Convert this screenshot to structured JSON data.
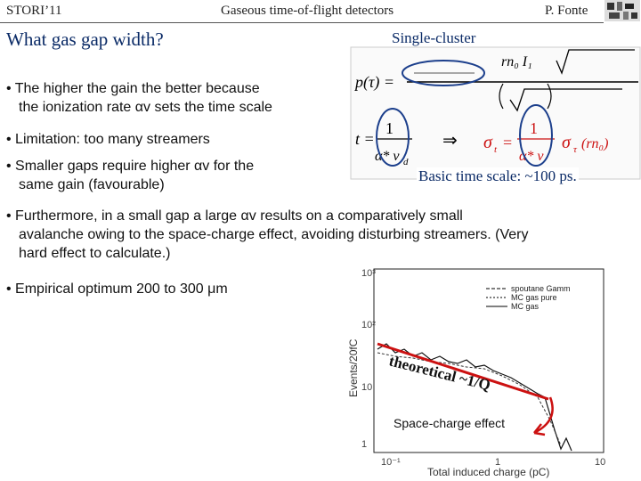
{
  "header": {
    "left": "STORI’11",
    "center": "Gaseous time-of-flight detectors",
    "right": "P. Fonte"
  },
  "slide": {
    "title": "What gas gap width?",
    "single_cluster_label": "Single-cluster",
    "caption": "Basic time scale: ~100 ps.",
    "bullets": [
      {
        "line1": "• The higher the gain the better because",
        "line2": "the ionization rate αv sets the time scale"
      },
      {
        "line1": "• Limitation: too many streamers",
        "line2": ""
      },
      {
        "line1": "• Smaller gaps require higher αv for the",
        "line2": "same gain (favourable)"
      },
      {
        "line1": "• Furthermore, in a small gap a large αv results on a comparatively small",
        "line2": "avalanche owing to the space-charge effect, avoiding disturbing streamers. (Very",
        "line3": "hard effect to calculate.)"
      },
      {
        "line1": "•  Empirical optimum 200 to 300 μm",
        "line2": ""
      }
    ]
  },
  "formula": {
    "p_tau": "p(τ) =",
    "t_eq": "t =",
    "sigma": "σ",
    "sub_t": "t",
    "eq_1": "1",
    "star_v": "α* v",
    "sub_d": "d",
    "arrow": "⇒",
    "rn0_I1": "rn₀ I₁",
    "sigma_tau": "σ",
    "rn0": "(rn₀)"
  },
  "plot": {
    "ylabel": "Events/20fC",
    "xlabel": "Total induced charge (pC)",
    "y_ticks": [
      "10³",
      "10²",
      "10",
      "1"
    ],
    "x_ticks": [
      "10⁻¹",
      "1",
      "10"
    ],
    "legend": [
      "spoutane Gamm",
      "MC gas pure",
      "MC gas"
    ],
    "theoretical_label": "theoretical ~1/Q",
    "space_charge_label": "Space-charge effect"
  },
  "colors": {
    "title_blue": "#0a2a66",
    "red_accent": "#cc1111",
    "ellipse_blue": "#1c3f8c"
  }
}
